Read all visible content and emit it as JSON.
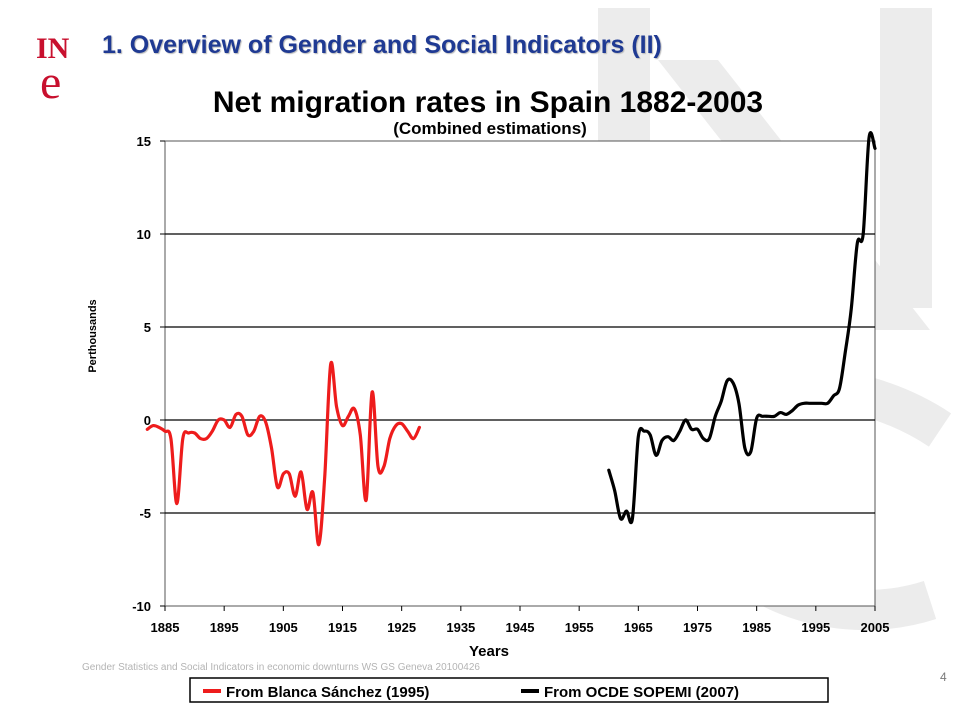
{
  "slide": {
    "title": "1. Overview of Gender and Social Indicators (II)",
    "footer": "Gender Statistics and Social Indicators in economic downturns WS GS Geneva 20100426",
    "page_number": "4",
    "logo_text_top": "IN",
    "logo_text_bottom": "e"
  },
  "colors": {
    "title": "#1f3a93",
    "logo": "#c8102e",
    "series_1": "#ee1c1c",
    "series_2": "#000000",
    "watermark": "#e6e6e6"
  },
  "chart_data": {
    "type": "line",
    "title": "Net migration rates in Spain 1882-2003",
    "subtitle": "(Combined estimations)",
    "xlabel": "Years",
    "ylabel": "Perthousands",
    "xlim": [
      1885,
      2005
    ],
    "ylim": [
      -10,
      15
    ],
    "x_ticks": [
      "1885",
      "1895",
      "1905",
      "1915",
      "1925",
      "1935",
      "1945",
      "1955",
      "1965",
      "1975",
      "1985",
      "1995",
      "2005"
    ],
    "y_ticks": [
      "15",
      "10",
      "5",
      "0",
      "-5",
      "-10"
    ],
    "grid": true,
    "legend_position": "bottom",
    "series": [
      {
        "name": "From Blanca Sánchez (1995)",
        "points": [
          [
            1882,
            -0.5
          ],
          [
            1883,
            -0.3
          ],
          [
            1884,
            -0.4
          ],
          [
            1885,
            -0.6
          ],
          [
            1886,
            -1.0
          ],
          [
            1887,
            -4.5
          ],
          [
            1888,
            -1.0
          ],
          [
            1889,
            -0.7
          ],
          [
            1890,
            -0.7
          ],
          [
            1891,
            -1.0
          ],
          [
            1892,
            -1.0
          ],
          [
            1893,
            -0.6
          ],
          [
            1894,
            0.0
          ],
          [
            1895,
            0.0
          ],
          [
            1896,
            -0.4
          ],
          [
            1897,
            0.3
          ],
          [
            1898,
            0.2
          ],
          [
            1899,
            -0.8
          ],
          [
            1900,
            -0.6
          ],
          [
            1901,
            0.2
          ],
          [
            1902,
            -0.1
          ],
          [
            1903,
            -1.5
          ],
          [
            1904,
            -3.6
          ],
          [
            1905,
            -2.9
          ],
          [
            1906,
            -2.9
          ],
          [
            1907,
            -4.1
          ],
          [
            1908,
            -2.8
          ],
          [
            1909,
            -4.8
          ],
          [
            1910,
            -3.9
          ],
          [
            1911,
            -6.7
          ],
          [
            1912,
            -3.0
          ],
          [
            1913,
            3.0
          ],
          [
            1914,
            0.7
          ],
          [
            1915,
            -0.3
          ],
          [
            1916,
            0.2
          ],
          [
            1917,
            0.6
          ],
          [
            1918,
            -0.8
          ],
          [
            1919,
            -4.3
          ],
          [
            1920,
            1.5
          ],
          [
            1921,
            -2.5
          ],
          [
            1922,
            -2.5
          ],
          [
            1923,
            -1.0
          ],
          [
            1924,
            -0.3
          ],
          [
            1925,
            -0.2
          ],
          [
            1926,
            -0.6
          ],
          [
            1927,
            -1.0
          ],
          [
            1928,
            -0.4
          ]
        ]
      },
      {
        "name": "From OCDE SOPEMI (2007)",
        "points": [
          [
            1960,
            -2.7
          ],
          [
            1961,
            -3.8
          ],
          [
            1962,
            -5.3
          ],
          [
            1963,
            -4.9
          ],
          [
            1964,
            -5.3
          ],
          [
            1965,
            -0.9
          ],
          [
            1966,
            -0.6
          ],
          [
            1967,
            -0.8
          ],
          [
            1968,
            -1.9
          ],
          [
            1969,
            -1.1
          ],
          [
            1970,
            -0.9
          ],
          [
            1971,
            -1.1
          ],
          [
            1972,
            -0.6
          ],
          [
            1973,
            0.0
          ],
          [
            1974,
            -0.5
          ],
          [
            1975,
            -0.5
          ],
          [
            1976,
            -1.0
          ],
          [
            1977,
            -1.0
          ],
          [
            1978,
            0.2
          ],
          [
            1979,
            1.0
          ],
          [
            1980,
            2.1
          ],
          [
            1981,
            2.0
          ],
          [
            1982,
            0.9
          ],
          [
            1983,
            -1.5
          ],
          [
            1984,
            -1.7
          ],
          [
            1985,
            0.1
          ],
          [
            1986,
            0.2
          ],
          [
            1987,
            0.2
          ],
          [
            1988,
            0.2
          ],
          [
            1989,
            0.4
          ],
          [
            1990,
            0.3
          ],
          [
            1991,
            0.5
          ],
          [
            1992,
            0.8
          ],
          [
            1993,
            0.9
          ],
          [
            1994,
            0.9
          ],
          [
            1995,
            0.9
          ],
          [
            1996,
            0.9
          ],
          [
            1997,
            0.9
          ],
          [
            1998,
            1.3
          ],
          [
            1999,
            1.7
          ],
          [
            2000,
            3.7
          ],
          [
            2001,
            6.0
          ],
          [
            2002,
            9.5
          ],
          [
            2003,
            10.0
          ],
          [
            2004,
            15.2
          ],
          [
            2005,
            14.6
          ]
        ]
      }
    ]
  }
}
